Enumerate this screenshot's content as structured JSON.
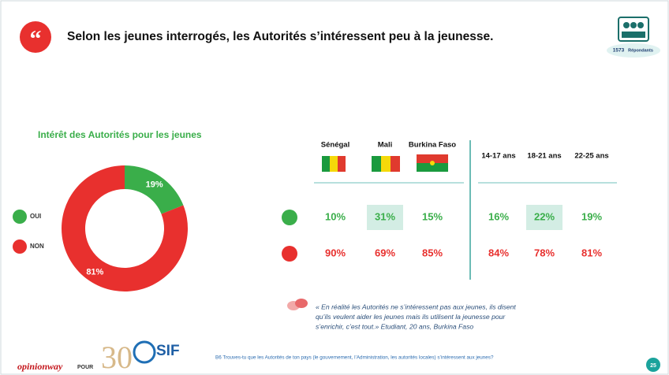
{
  "slide": {
    "title": "Selon les jeunes interrogés, les Autorités s’intéressent peu à la jeunesse.",
    "respondents_count": "1573",
    "respondents_label": "Répondants",
    "quote_lines": [
      "« En réalité les Autorités ne s’intéressent pas aux jeunes, ils disent",
      "qu’ils veulent aider les jeunes mais ils utilisent la jeunesse pour",
      "s’enrichir, c’est tout.» Etudiant, 20 ans, Burkina Faso"
    ],
    "question": "B6 Trouves-tu que les Autorités de ton pays (le gouvernement, l’Administration, les autorités locales) s’intéressent aux jeunes?",
    "logo_opinionway": "opinionway",
    "logo_pour": "POUR",
    "logo_30": "30",
    "logo_sif": "SIF",
    "page_number": "25"
  },
  "chart_data": {
    "type": "donut",
    "title": "Intérêt des Autorités pour les jeunes",
    "categories": [
      "OUI",
      "NON"
    ],
    "values": [
      19,
      81
    ],
    "value_labels": [
      "19%",
      "81%"
    ],
    "colors": [
      "#3aae4a",
      "#e8302e"
    ]
  },
  "table": {
    "headers": [
      "Sénégal",
      "Mali",
      "Burkina Faso",
      "14-17 ans",
      "18-21 ans",
      "22-25 ans"
    ],
    "rows": [
      [
        "10%",
        "31%",
        "15%",
        "16%",
        "22%",
        "19%"
      ],
      [
        "90%",
        "69%",
        "85%",
        "84%",
        "78%",
        "81%"
      ]
    ]
  }
}
